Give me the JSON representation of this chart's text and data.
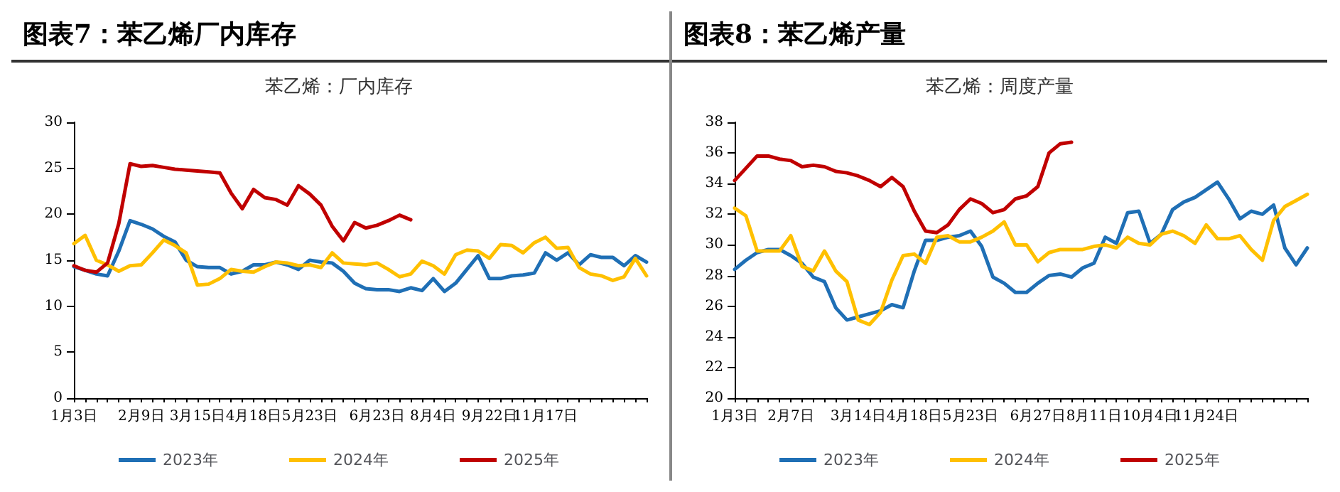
{
  "chart_data": [
    {
      "type": "line",
      "title": "图表7：苯乙烯厂内库存",
      "subtitle": "苯乙烯：厂内库存",
      "categories": [
        "1月3日",
        null,
        null,
        null,
        null,
        null,
        "2月9日",
        null,
        null,
        null,
        null,
        "3月15日",
        null,
        null,
        null,
        null,
        "4月18日",
        null,
        null,
        null,
        null,
        "5月23日",
        null,
        null,
        null,
        null,
        null,
        "6月23日",
        null,
        null,
        null,
        null,
        "8月4日",
        null,
        null,
        null,
        null,
        "9月22日",
        null,
        null,
        null,
        null,
        "11月17日",
        null,
        null,
        null,
        null,
        null,
        null,
        null,
        null,
        null
      ],
      "series": [
        {
          "name": "2023年",
          "color": "#1f6fb5",
          "values": [
            14.3,
            13.9,
            13.5,
            13.3,
            16.0,
            19.3,
            18.9,
            18.4,
            17.6,
            17.0,
            15.0,
            14.3,
            14.2,
            14.2,
            13.5,
            13.8,
            14.5,
            14.5,
            14.8,
            14.5,
            14.0,
            15.0,
            14.8,
            14.7,
            13.8,
            12.5,
            11.9,
            11.8,
            11.8,
            11.6,
            12.0,
            11.7,
            13.0,
            11.6,
            12.5,
            14.0,
            15.5,
            13.0,
            13.0,
            13.3,
            13.4,
            13.6,
            15.8,
            15.0,
            15.8,
            14.5,
            15.6,
            15.3,
            15.3,
            14.4,
            15.5,
            14.8
          ]
        },
        {
          "name": "2024年",
          "color": "#ffc000",
          "values": [
            16.8,
            17.7,
            15.0,
            14.5,
            13.8,
            14.4,
            14.5,
            15.8,
            17.2,
            16.6,
            15.8,
            12.3,
            12.4,
            13.0,
            14.0,
            13.8,
            13.7,
            14.3,
            14.8,
            14.7,
            14.4,
            14.5,
            14.2,
            15.8,
            14.7,
            14.6,
            14.5,
            14.7,
            14.0,
            13.2,
            13.5,
            14.9,
            14.4,
            13.5,
            15.6,
            16.1,
            16.0,
            15.2,
            16.7,
            16.6,
            15.8,
            16.9,
            17.5,
            16.3,
            16.4,
            14.2,
            13.5,
            13.3,
            12.8,
            13.2,
            15.2,
            13.3
          ]
        },
        {
          "name": "2025年",
          "color": "#c00000",
          "values": [
            14.4,
            13.9,
            13.7,
            14.7,
            19.0,
            25.5,
            25.2,
            25.3,
            25.1,
            24.9,
            24.8,
            24.7,
            24.6,
            24.5,
            22.3,
            20.6,
            22.7,
            21.8,
            21.6,
            21.0,
            23.1,
            22.2,
            21.0,
            18.7,
            17.1,
            19.1,
            18.5,
            18.8,
            19.3,
            19.9,
            19.4,
            null,
            null,
            null,
            null,
            null,
            null,
            null,
            null,
            null,
            null,
            null,
            null,
            null,
            null,
            null,
            null,
            null,
            null,
            null,
            null,
            null
          ]
        }
      ],
      "ylim": [
        0,
        30
      ],
      "yticks": [
        0,
        5,
        10,
        15,
        20,
        25,
        30
      ],
      "legend": "bottom",
      "marker": "none",
      "line_style": "solid"
    },
    {
      "type": "line",
      "title": "图表8：苯乙烯产量",
      "subtitle": "苯乙烯：周度产量",
      "categories": [
        "1月3日",
        null,
        null,
        null,
        null,
        "2月7日",
        null,
        null,
        null,
        null,
        null,
        "3月14日",
        null,
        null,
        null,
        null,
        "4月18日",
        null,
        null,
        null,
        null,
        "5月23日",
        null,
        null,
        null,
        null,
        null,
        "6月27日",
        null,
        null,
        null,
        null,
        "8月11日",
        null,
        null,
        null,
        null,
        "10月4日",
        null,
        null,
        null,
        null,
        "11月24日",
        null,
        null,
        null,
        null,
        null,
        null,
        null,
        null,
        null
      ],
      "series": [
        {
          "name": "2023年",
          "color": "#1f6fb5",
          "values": [
            28.4,
            29.0,
            29.5,
            29.7,
            29.7,
            29.3,
            28.8,
            27.9,
            27.6,
            25.9,
            25.1,
            25.3,
            25.5,
            25.7,
            26.1,
            25.9,
            28.3,
            30.3,
            30.3,
            30.5,
            30.6,
            30.9,
            29.9,
            27.9,
            27.5,
            26.9,
            26.9,
            27.5,
            28.0,
            28.1,
            27.9,
            28.5,
            28.8,
            30.5,
            30.1,
            32.1,
            32.2,
            30.1,
            30.7,
            32.3,
            32.8,
            33.1,
            33.6,
            34.1,
            33.0,
            31.7,
            32.2,
            32.0,
            32.6,
            29.8,
            28.7,
            29.8
          ]
        },
        {
          "name": "2024年",
          "color": "#ffc000",
          "values": [
            32.4,
            31.9,
            29.6,
            29.6,
            29.6,
            30.6,
            28.6,
            28.3,
            29.6,
            28.3,
            27.6,
            25.1,
            24.8,
            25.6,
            27.7,
            29.3,
            29.4,
            28.8,
            30.5,
            30.6,
            30.2,
            30.2,
            30.5,
            30.9,
            31.5,
            30.0,
            30.0,
            28.9,
            29.5,
            29.7,
            29.7,
            29.7,
            29.9,
            30.0,
            29.8,
            30.5,
            30.1,
            30.0,
            30.7,
            30.9,
            30.6,
            30.1,
            31.3,
            30.4,
            30.4,
            30.6,
            29.7,
            29.0,
            31.6,
            32.5,
            32.9,
            33.3
          ]
        },
        {
          "name": "2025年",
          "color": "#c00000",
          "values": [
            34.2,
            35.0,
            35.8,
            35.8,
            35.6,
            35.5,
            35.1,
            35.2,
            35.1,
            34.8,
            34.7,
            34.5,
            34.2,
            33.8,
            34.4,
            33.8,
            32.2,
            30.9,
            30.8,
            31.3,
            32.3,
            33.0,
            32.7,
            32.1,
            32.3,
            33.0,
            33.2,
            33.8,
            36.0,
            36.6,
            36.7,
            null,
            null,
            null,
            null,
            null,
            null,
            null,
            null,
            null,
            null,
            null,
            null,
            null,
            null,
            null,
            null,
            null,
            null,
            null,
            null,
            null
          ]
        }
      ],
      "ylim": [
        20,
        38
      ],
      "yticks": [
        20,
        22,
        24,
        26,
        28,
        30,
        32,
        34,
        36,
        38
      ],
      "legend": "bottom",
      "marker": "none",
      "line_style": "solid"
    }
  ]
}
